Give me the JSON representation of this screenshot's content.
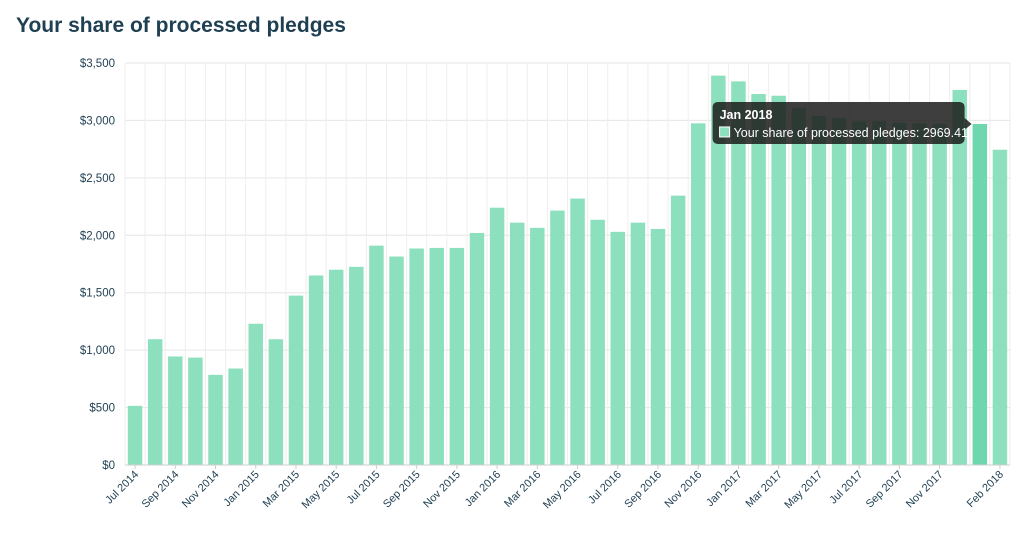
{
  "title": "Your share of processed pledges",
  "colors": {
    "bar": "#8de0bd",
    "bar_active": "#6fd7ae",
    "grid": "#e6e6e6",
    "text": "#1f3f52",
    "tooltip_bg": "#1c1c1c"
  },
  "chart_data": {
    "type": "bar",
    "title": "Your share of processed pledges",
    "xlabel": "",
    "ylabel": "",
    "ylim": [
      0,
      3500
    ],
    "y_ticks": [
      0,
      500,
      1000,
      1500,
      2000,
      2500,
      3000,
      3500
    ],
    "y_tick_labels": [
      "$0",
      "$500",
      "$1,000",
      "$1,500",
      "$2,000",
      "$2,500",
      "$3,000",
      "$3,500"
    ],
    "grid": true,
    "categories": [
      "Jul 2014",
      "Aug 2014",
      "Sep 2014",
      "Oct 2014",
      "Nov 2014",
      "Dec 2014",
      "Jan 2015",
      "Feb 2015",
      "Mar 2015",
      "Apr 2015",
      "May 2015",
      "Jun 2015",
      "Jul 2015",
      "Aug 2015",
      "Sep 2015",
      "Oct 2015",
      "Nov 2015",
      "Dec 2015",
      "Jan 2016",
      "Feb 2016",
      "Mar 2016",
      "Apr 2016",
      "May 2016",
      "Jun 2016",
      "Jul 2016",
      "Aug 2016",
      "Sep 2016",
      "Oct 2016",
      "Nov 2016",
      "Dec 2016",
      "Jan 2017",
      "Feb 2017",
      "Mar 2017",
      "Apr 2017",
      "May 2017",
      "Jun 2017",
      "Jul 2017",
      "Aug 2017",
      "Sep 2017",
      "Oct 2017",
      "Nov 2017",
      "Dec 2017",
      "Jan 2018",
      "Feb 2018"
    ],
    "values": [
      515,
      1095,
      945,
      935,
      785,
      840,
      1230,
      1095,
      1475,
      1650,
      1700,
      1725,
      1910,
      1815,
      1885,
      1890,
      1890,
      2020,
      2240,
      2110,
      2065,
      2215,
      2320,
      2135,
      2030,
      2110,
      2055,
      2345,
      2975,
      3390,
      3340,
      3230,
      3215,
      3110,
      3040,
      3020,
      2990,
      2995,
      2980,
      2975,
      2970,
      3265,
      2969.41,
      2745
    ],
    "x_tick_labels": [
      "Jul 2014",
      "Sep 2014",
      "Nov 2014",
      "Jan 2015",
      "Mar 2015",
      "May 2015",
      "Jul 2015",
      "Sep 2015",
      "Nov 2015",
      "Jan 2016",
      "Mar 2016",
      "May 2016",
      "Jul 2016",
      "Sep 2016",
      "Nov 2016",
      "Jan 2017",
      "Mar 2017",
      "May 2017",
      "Jul 2017",
      "Sep 2017",
      "Nov 2017",
      "Feb 2018"
    ],
    "active_index": 42,
    "tooltip": {
      "title": "Jan 2018",
      "label": "Your share of processed pledges: 2969.41"
    }
  }
}
